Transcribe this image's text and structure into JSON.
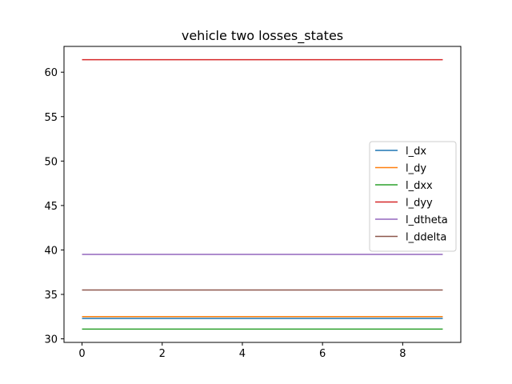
{
  "chart_data": {
    "type": "line",
    "title": "vehicle two losses_states",
    "xlabel": "",
    "ylabel": "",
    "xlim": [
      -0.45,
      9.45
    ],
    "ylim": [
      29.6,
      62.9
    ],
    "xticks": [
      0,
      2,
      4,
      6,
      8
    ],
    "xtick_labels": [
      "0",
      "2",
      "4",
      "6",
      "8"
    ],
    "yticks": [
      30,
      35,
      40,
      45,
      50,
      55,
      60
    ],
    "ytick_labels": [
      "30",
      "35",
      "40",
      "45",
      "50",
      "55",
      "60"
    ],
    "grid": false,
    "legend_position": "center-right",
    "x": [
      0,
      1,
      2,
      3,
      4,
      5,
      6,
      7,
      8,
      9
    ],
    "series": [
      {
        "name": "l_dx",
        "color": "#1f77b4",
        "values": [
          32.3,
          32.3,
          32.3,
          32.3,
          32.3,
          32.3,
          32.3,
          32.3,
          32.3,
          32.3
        ]
      },
      {
        "name": "l_dy",
        "color": "#ff7f0e",
        "values": [
          32.5,
          32.5,
          32.5,
          32.5,
          32.5,
          32.5,
          32.5,
          32.5,
          32.5,
          32.5
        ]
      },
      {
        "name": "l_dxx",
        "color": "#2ca02c",
        "values": [
          31.1,
          31.1,
          31.1,
          31.1,
          31.1,
          31.1,
          31.1,
          31.1,
          31.1,
          31.1
        ]
      },
      {
        "name": "l_dyy",
        "color": "#d62728",
        "values": [
          61.4,
          61.4,
          61.4,
          61.4,
          61.4,
          61.4,
          61.4,
          61.4,
          61.4,
          61.4
        ]
      },
      {
        "name": "l_dtheta",
        "color": "#9467bd",
        "values": [
          39.5,
          39.5,
          39.5,
          39.5,
          39.5,
          39.5,
          39.5,
          39.5,
          39.5,
          39.5
        ]
      },
      {
        "name": "l_ddelta",
        "color": "#8c564b",
        "values": [
          35.5,
          35.5,
          35.5,
          35.5,
          35.5,
          35.5,
          35.5,
          35.5,
          35.5,
          35.5
        ]
      }
    ]
  }
}
